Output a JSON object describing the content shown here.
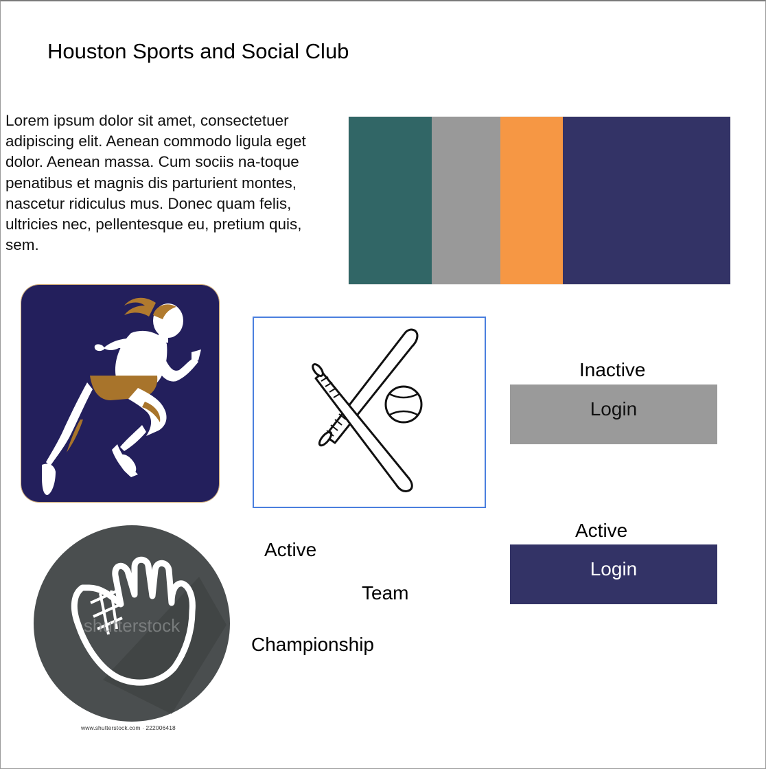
{
  "header": {
    "title": "Houston Sports and Social Club"
  },
  "intro": {
    "text": "Lorem ipsum dolor sit amet, consectetuer adipiscing elit. Aenean commodo ligula eget dolor. Aenean massa. Cum sociis na-toque penatibus et magnis dis parturient montes, nascetur ridiculus mus. Donec quam felis, ultricies nec, pellentesque eu, pretium quis, sem."
  },
  "palette": {
    "swatches": [
      {
        "name": "teal",
        "color": "#316666"
      },
      {
        "name": "gray",
        "color": "#999999"
      },
      {
        "name": "orange",
        "color": "#f69744"
      },
      {
        "name": "navy",
        "color": "#333366"
      }
    ]
  },
  "icons": {
    "runner": {
      "name": "runner-icon",
      "background": "#231f5c"
    },
    "bat_ball": {
      "name": "baseball-bat-ball-icon"
    },
    "glove": {
      "name": "baseball-glove-icon",
      "watermark": "shutterstock",
      "caption": "www.shutterstock.com · 222006418"
    }
  },
  "labels": {
    "active": "Active",
    "team": "Team",
    "championship": "Championship"
  },
  "buttons": {
    "inactive": {
      "state_label": "Inactive",
      "label": "Login",
      "color": "#9a9a9a"
    },
    "active": {
      "state_label": "Active",
      "label": "Login",
      "color": "#333366"
    }
  }
}
